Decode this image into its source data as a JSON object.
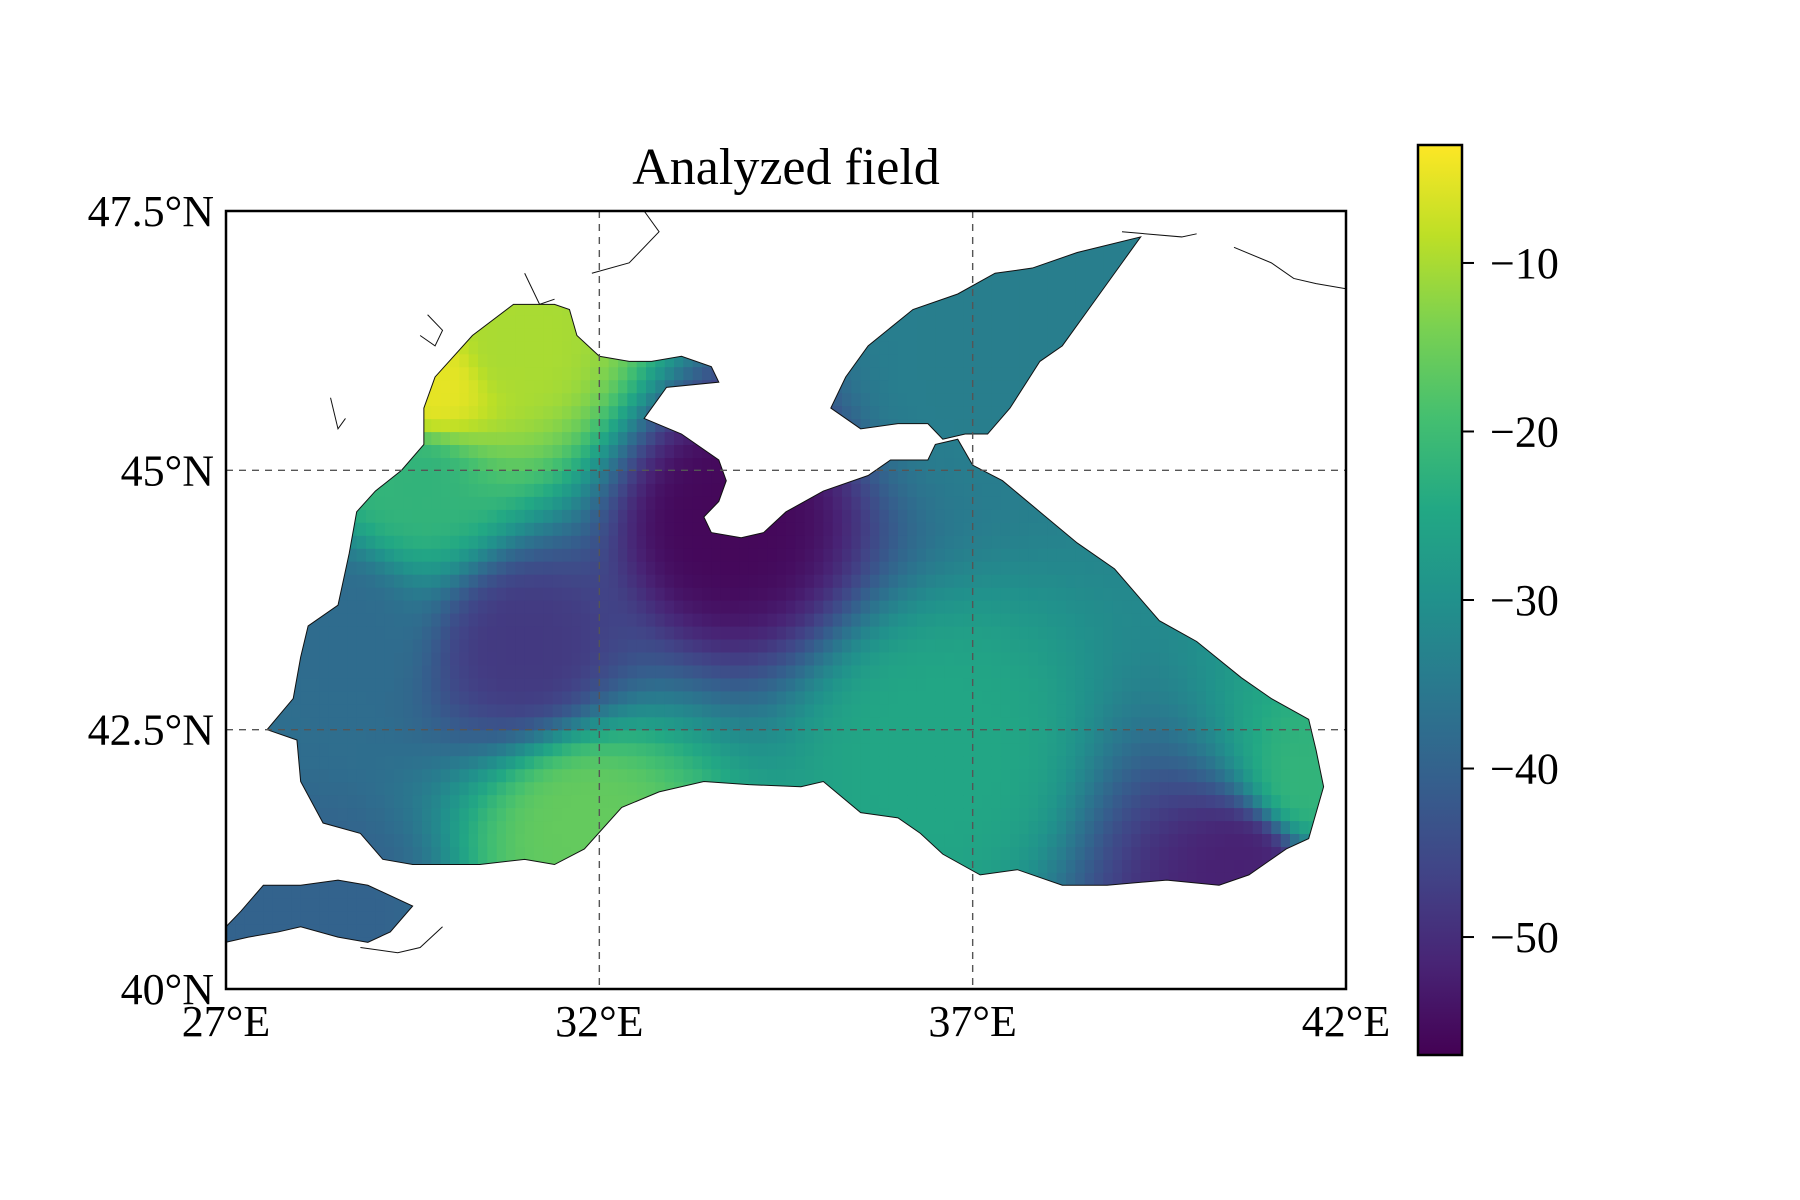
{
  "title": "Analyzed field",
  "map": {
    "projection": "plate-carree",
    "lon_range": [
      27,
      42
    ],
    "lat_range": [
      40,
      47.5
    ],
    "lon_ticks": [
      {
        "value": 27,
        "label": "27°E"
      },
      {
        "value": 32,
        "label": "32°E"
      },
      {
        "value": 37,
        "label": "37°E"
      },
      {
        "value": 42,
        "label": "42°E"
      }
    ],
    "lat_ticks": [
      {
        "value": 40,
        "label": "40°N"
      },
      {
        "value": 42.5,
        "label": "42.5°N"
      },
      {
        "value": 45,
        "label": "45°N"
      },
      {
        "value": 47.5,
        "label": "47.5°N"
      }
    ],
    "gridlines": true,
    "coastlines": true,
    "region": "Black Sea, Sea of Azov, Sea of Marmara"
  },
  "colorbar": {
    "colormap": "viridis",
    "range": [
      -57,
      -3
    ],
    "ticks": [
      {
        "value": -10,
        "label": "−10"
      },
      {
        "value": -20,
        "label": "−20"
      },
      {
        "value": -30,
        "label": "−30"
      },
      {
        "value": -40,
        "label": "−40"
      },
      {
        "value": -50,
        "label": "−50"
      }
    ],
    "stops": [
      "#440154",
      "#482475",
      "#414487",
      "#355f8d",
      "#2a788e",
      "#21918c",
      "#22a884",
      "#44bf70",
      "#7ad151",
      "#bddf26",
      "#fde725"
    ]
  },
  "chart_data": {
    "type": "heatmap",
    "title": "Analyzed field",
    "xlabel": "",
    "ylabel": "",
    "xlim": [
      27,
      42
    ],
    "ylim": [
      40,
      47.5
    ],
    "value_range": [
      -57,
      -3
    ],
    "field_features": [
      {
        "lon": 29.8,
        "lat": 45.8,
        "value": -5
      },
      {
        "lon": 30.8,
        "lat": 46.2,
        "value": -10
      },
      {
        "lon": 29.6,
        "lat": 44.9,
        "value": -22
      },
      {
        "lon": 31.8,
        "lat": 41.6,
        "value": -16
      },
      {
        "lon": 31.0,
        "lat": 43.3,
        "value": -48
      },
      {
        "lon": 33.7,
        "lat": 44.5,
        "value": -56
      },
      {
        "lon": 36.5,
        "lat": 42.3,
        "value": -25
      },
      {
        "lon": 40.6,
        "lat": 41.2,
        "value": -52
      },
      {
        "lon": 41.5,
        "lat": 42.0,
        "value": -22
      },
      {
        "lon": 37.0,
        "lat": 46.0,
        "value": -34
      },
      {
        "lon": 28.3,
        "lat": 40.7,
        "value": -40
      },
      {
        "lon": 28.5,
        "lat": 43.5,
        "value": -38
      }
    ]
  }
}
